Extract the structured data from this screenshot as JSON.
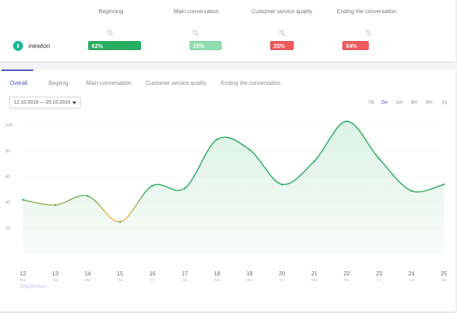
{
  "summary": {
    "columns": [
      "Beginning",
      "Main conversation",
      "Customer service quality",
      "Ending the conversation"
    ],
    "agent": {
      "name": "inewton"
    },
    "scores": [
      {
        "label": "62%",
        "value": 62,
        "color": "#27ae60"
      },
      {
        "label": "15%",
        "value": 15,
        "color": "#8ddfb0"
      },
      {
        "label": "25%",
        "value": 25,
        "color": "#f05a5a"
      },
      {
        "label": "54%",
        "value": 54,
        "color": "#f05a5a"
      }
    ]
  },
  "tabs": [
    "Overall",
    "Begiinig",
    "Main conversation",
    "Customer service quality",
    "Ending the conversation"
  ],
  "active_tab": "Overall",
  "date_range": "12.10.2019 — 25.10.2019",
  "ranges": [
    "7d",
    "2w",
    "1m",
    "3m",
    "6m",
    "1y"
  ],
  "active_range": "2w",
  "month_label": "September",
  "chart_data": {
    "type": "area",
    "x": [
      "12",
      "13",
      "14",
      "15",
      "16",
      "17",
      "18",
      "19",
      "20",
      "21",
      "22",
      "23",
      "24",
      "25"
    ],
    "x_weekdays": [
      "Mon",
      "Tue",
      "Wed",
      "Thu",
      "Fri",
      "Sat",
      "Sun",
      "Mon",
      "Tue",
      "Wed",
      "Thu",
      "Fri",
      "Sat",
      "Sun"
    ],
    "y_ticks": [
      "100",
      "80",
      "60",
      "40",
      "20"
    ],
    "ylim": [
      0,
      100
    ],
    "series": [
      {
        "values": [
          42,
          38,
          45,
          25,
          53,
          51,
          89,
          81,
          54,
          72,
          103,
          74,
          49,
          54
        ]
      }
    ],
    "colors": {
      "high": "#27ae60",
      "mid": "#f5b942",
      "low": "#e84c4c"
    },
    "grid": true
  }
}
